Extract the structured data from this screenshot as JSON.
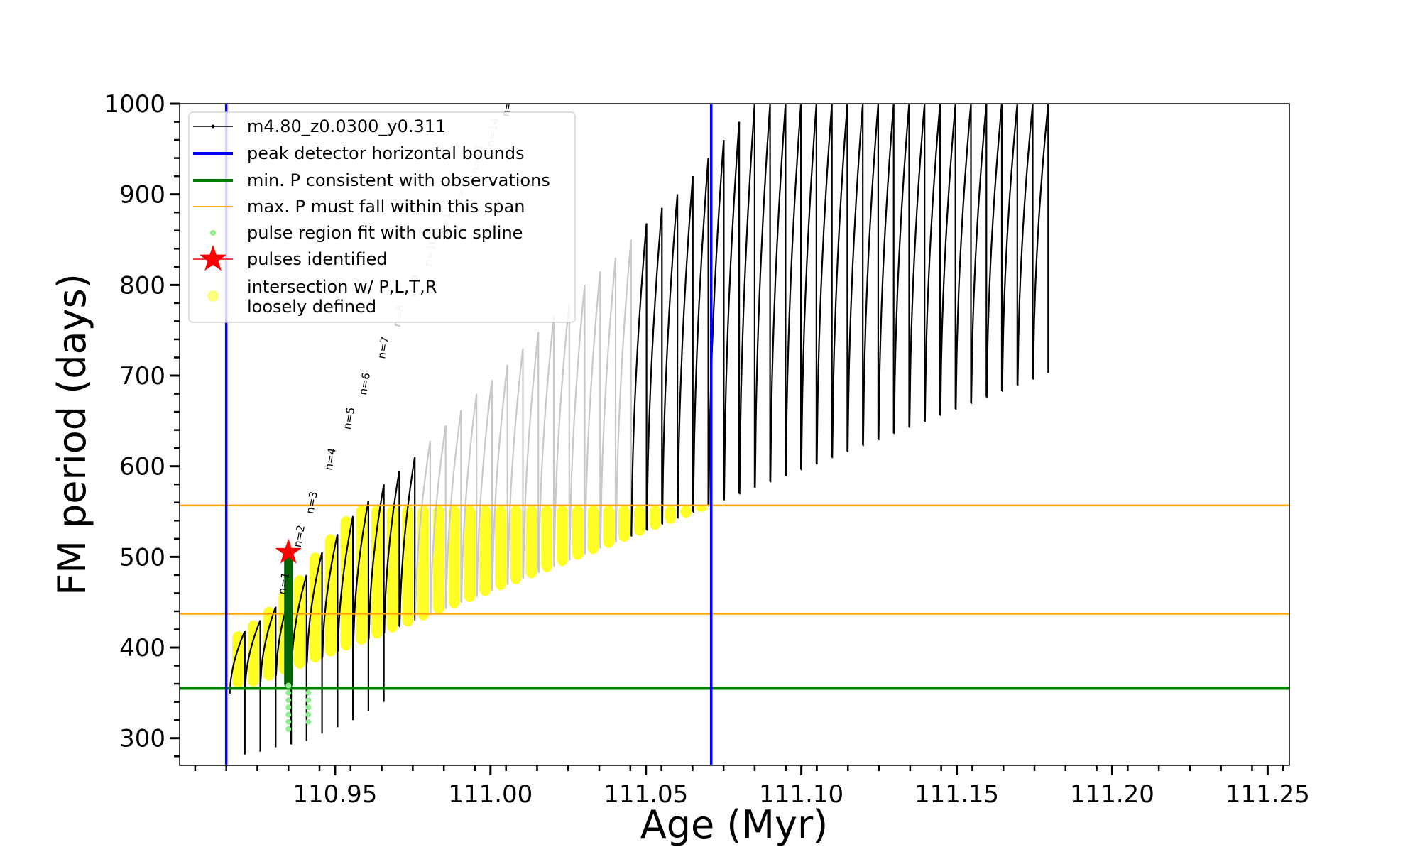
{
  "chart_data": {
    "type": "scatter",
    "xlabel": "Age (Myr)",
    "ylabel": "FM period (days)",
    "xlim": [
      110.9,
      111.257
    ],
    "ylim": [
      270,
      1000
    ],
    "x_ticks": [
      "110.95",
      "111.00",
      "111.05",
      "111.10",
      "111.15",
      "111.20",
      "111.25"
    ],
    "x_tick_values": [
      110.95,
      111.0,
      111.05,
      111.1,
      111.15,
      111.2,
      111.25
    ],
    "y_ticks": [
      "300",
      "400",
      "500",
      "600",
      "700",
      "800",
      "900",
      "1000"
    ],
    "y_tick_values": [
      300,
      400,
      500,
      600,
      700,
      800,
      900,
      1000
    ],
    "legend": {
      "placement": "top-left",
      "entries": [
        {
          "label": "m4.80_z0.0300_y0.311",
          "marker": "black-line-dot"
        },
        {
          "label": "peak detector horizontal bounds",
          "marker": "blue-line"
        },
        {
          "label": "min. P consistent with observations",
          "marker": "green-line"
        },
        {
          "label": "max. P must fall within this span",
          "marker": "orange-line"
        },
        {
          "label": "pulse region fit with cubic spline",
          "marker": "lightgreen-dot"
        },
        {
          "label": "pulses identified",
          "marker": "red-star"
        },
        {
          "label": "intersection w/ P,L,T,R",
          "label2": "loosely defined",
          "marker": "yellow-dot"
        }
      ]
    },
    "vertical_lines": [
      110.915,
      111.071
    ],
    "min_period_line": 355,
    "max_period_span": [
      437,
      557
    ],
    "star": {
      "x": 110.935,
      "y": 505
    },
    "pulse_labels": [
      {
        "text": "n=1",
        "x": 110.934,
        "y": 458
      },
      {
        "text": "n=2",
        "x": 110.939,
        "y": 510
      },
      {
        "text": "n=3",
        "x": 110.943,
        "y": 547
      },
      {
        "text": "n=4",
        "x": 110.949,
        "y": 595
      },
      {
        "text": "n=5",
        "x": 110.955,
        "y": 640
      },
      {
        "text": "n=6",
        "x": 110.96,
        "y": 678
      },
      {
        "text": "n=7",
        "x": 110.966,
        "y": 718
      },
      {
        "text": "n=8",
        "x": 110.971,
        "y": 753
      },
      {
        "text": "n=9",
        "x": 110.976,
        "y": 786
      },
      {
        "text": "n=10",
        "x": 110.981,
        "y": 820
      },
      {
        "text": "n=11",
        "x": 110.986,
        "y": 855
      },
      {
        "text": "n=12",
        "x": 110.991,
        "y": 888
      },
      {
        "text": "n=13",
        "x": 110.996,
        "y": 922
      },
      {
        "text": "n=14",
        "x": 111.001,
        "y": 952
      },
      {
        "text": "n=15",
        "x": 111.006,
        "y": 985
      },
      {
        "text": "n=16",
        "x": 111.011,
        "y": 1000
      }
    ],
    "pulse_series": {
      "start_age": 110.916,
      "pulse_width": 0.00497,
      "count": 53,
      "first_peak": 418,
      "peaks": [
        418,
        430,
        445,
        463,
        480,
        505,
        525,
        545,
        562,
        580,
        595,
        610,
        628,
        645,
        662,
        680,
        695,
        712,
        730,
        748,
        765,
        780,
        800,
        815,
        830,
        850,
        868,
        885,
        900,
        920,
        940,
        960,
        980,
        1000,
        1000,
        1000,
        1000,
        1000,
        1000,
        1000,
        1000,
        1000,
        1000,
        1000,
        1000,
        1000,
        1000,
        1000,
        1000,
        1000,
        1000,
        1000,
        1000
      ],
      "first_trough": 350,
      "trough_slope_per_myr": 1340,
      "early_troughs": [
        282,
        285,
        290,
        293,
        297,
        305,
        312,
        320,
        330,
        340
      ]
    },
    "colors": {
      "model": "#000000",
      "bounds": "#0000ff",
      "min_period": "#008000",
      "max_span": "#ffa500",
      "spline": "#90ee90",
      "star": "#ff0000",
      "intersection": "#ffff00",
      "faded_pulses": "#c8c8c8",
      "dark_spline": "#006400"
    }
  }
}
